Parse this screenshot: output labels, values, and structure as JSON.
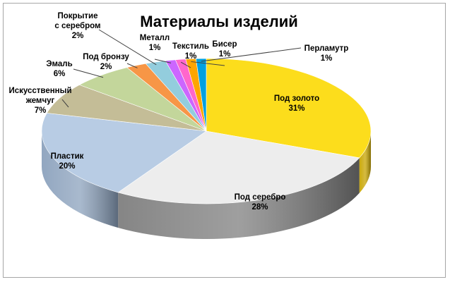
{
  "chart_data": {
    "type": "pie",
    "title": "Материалы изделий",
    "slices": [
      {
        "lines": [
          "Под золото"
        ],
        "pct": "31%",
        "value": 31,
        "color": "#FCDD1C",
        "side": "#C8A500"
      },
      {
        "lines": [
          "Под серебро"
        ],
        "pct": "28%",
        "value": 28,
        "color": "#EDEDED",
        "side": "#7F7F7F"
      },
      {
        "lines": [
          "Пластик"
        ],
        "pct": "20%",
        "value": 20,
        "color": "#B8CCE4",
        "side": "#8CA2BD"
      },
      {
        "lines": [
          "Искусственный",
          "жемчуг"
        ],
        "pct": "7%",
        "value": 7,
        "color": "#C4BD97",
        "side": "#948A54"
      },
      {
        "lines": [
          "Эмаль"
        ],
        "pct": "6%",
        "value": 6,
        "color": "#C3D69B",
        "side": "#8FA563"
      },
      {
        "lines": [
          "Под бронзу"
        ],
        "pct": "2%",
        "value": 2,
        "color": "#F79646",
        "side": "#C0662A"
      },
      {
        "lines": [
          "Покрытие",
          "с серебром"
        ],
        "pct": "2%",
        "value": 2,
        "color": "#93CDDD",
        "side": "#5F9FB0"
      },
      {
        "lines": [
          "Металл"
        ],
        "pct": "1%",
        "value": 1,
        "color": "#CC66FF",
        "side": "#9933CC"
      },
      {
        "lines": [
          "Текстиль"
        ],
        "pct": "1%",
        "value": 1,
        "color": "#FF66CC",
        "side": "#CC3399"
      },
      {
        "lines": [
          "Бисер"
        ],
        "pct": "1%",
        "value": 1,
        "color": "#FFA500",
        "side": "#C07800"
      },
      {
        "lines": [
          "Перламутр"
        ],
        "pct": "1%",
        "value": 1,
        "color": "#00A0E0",
        "side": "#0070A0"
      }
    ]
  }
}
